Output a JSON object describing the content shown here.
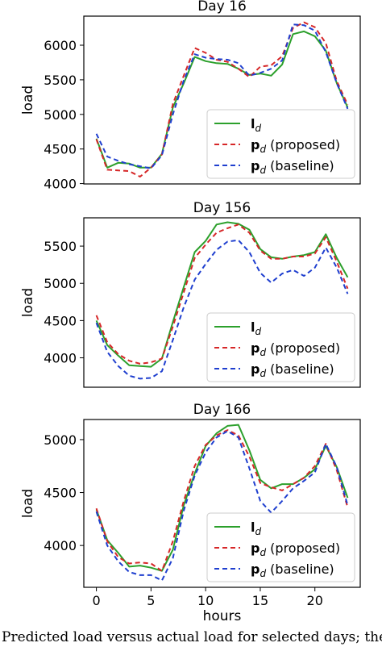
{
  "caption": "Predicted load versus actual load for selected days; the proposed method tracks closely",
  "legend": {
    "entries": [
      {
        "symbol": "l",
        "sub": "d",
        "suffix": "",
        "color": "#2ca02c",
        "dash": false
      },
      {
        "symbol": "p",
        "sub": "d",
        "suffix": " (proposed)",
        "color": "#d62728",
        "dash": true
      },
      {
        "symbol": "p",
        "sub": "d",
        "suffix": " (baseline)",
        "color": "#1f3fcf",
        "dash": true
      }
    ]
  },
  "chart_data": [
    {
      "type": "line",
      "title": "Day 16",
      "xlabel": "",
      "ylabel": "load",
      "xlim": [
        -1.15,
        24.15
      ],
      "ylim": [
        3995,
        6420
      ],
      "yticks": [
        4000,
        4500,
        5000,
        5500,
        6000
      ],
      "xticks": [],
      "grid": false,
      "legend_position": "lower-right",
      "x": [
        0,
        1,
        2,
        3,
        4,
        5,
        6,
        7,
        8,
        9,
        10,
        11,
        12,
        13,
        14,
        15,
        16,
        17,
        18,
        19,
        20,
        21,
        22,
        23
      ],
      "series": [
        {
          "name": "l_d",
          "color": "#2ca02c",
          "dash": false,
          "values": [
            4650,
            4230,
            4300,
            4290,
            4230,
            4230,
            4430,
            5100,
            5450,
            5830,
            5770,
            5740,
            5730,
            5660,
            5570,
            5590,
            5560,
            5720,
            6160,
            6200,
            6130,
            5920,
            5450,
            5100
          ]
        },
        {
          "name": "p_d (proposed)",
          "color": "#d62728",
          "dash": true,
          "values": [
            4640,
            4200,
            4190,
            4180,
            4100,
            4230,
            4420,
            5150,
            5560,
            5960,
            5890,
            5790,
            5760,
            5660,
            5540,
            5690,
            5710,
            5840,
            6250,
            6330,
            6260,
            6030,
            5480,
            5140
          ]
        },
        {
          "name": "p_d (baseline)",
          "color": "#1f3fcf",
          "dash": true,
          "values": [
            4720,
            4390,
            4330,
            4280,
            4250,
            4220,
            4410,
            5000,
            5490,
            5870,
            5820,
            5800,
            5790,
            5740,
            5560,
            5600,
            5660,
            5780,
            6300,
            6290,
            6210,
            5900,
            5450,
            5080
          ]
        }
      ]
    },
    {
      "type": "line",
      "title": "Day 156",
      "xlabel": "",
      "ylabel": "load",
      "xlim": [
        -1.15,
        24.15
      ],
      "ylim": [
        3605,
        5880
      ],
      "yticks": [
        4000,
        4500,
        5000,
        5500
      ],
      "xticks": [],
      "grid": false,
      "legend_position": "lower-right",
      "x": [
        0,
        1,
        2,
        3,
        4,
        5,
        6,
        7,
        8,
        9,
        10,
        11,
        12,
        13,
        14,
        15,
        16,
        17,
        18,
        19,
        20,
        21,
        22,
        23
      ],
      "series": [
        {
          "name": "l_d",
          "color": "#2ca02c",
          "dash": false,
          "values": [
            4500,
            4170,
            4030,
            3900,
            3890,
            3880,
            3990,
            4480,
            4950,
            5420,
            5570,
            5790,
            5820,
            5800,
            5720,
            5460,
            5350,
            5330,
            5360,
            5380,
            5420,
            5660,
            5340,
            5080
          ]
        },
        {
          "name": "p_d (proposed)",
          "color": "#d62728",
          "dash": true,
          "values": [
            4570,
            4210,
            4050,
            3960,
            3920,
            3940,
            3990,
            4420,
            4880,
            5340,
            5520,
            5680,
            5740,
            5790,
            5680,
            5440,
            5330,
            5330,
            5360,
            5360,
            5400,
            5620,
            5290,
            4930
          ]
        },
        {
          "name": "p_d (baseline)",
          "color": "#1f3fcf",
          "dash": true,
          "values": [
            4470,
            4080,
            3890,
            3760,
            3720,
            3730,
            3820,
            4240,
            4680,
            5050,
            5260,
            5450,
            5560,
            5580,
            5420,
            5140,
            5010,
            5130,
            5180,
            5100,
            5210,
            5480,
            5210,
            4860
          ]
        }
      ]
    },
    {
      "type": "line",
      "title": "Day 166",
      "xlabel": "hours",
      "ylabel": "load",
      "xlim": [
        -1.15,
        24.15
      ],
      "ylim": [
        3605,
        5190
      ],
      "yticks": [
        4000,
        4500,
        5000
      ],
      "xticks": [
        0,
        5,
        10,
        15,
        20
      ],
      "grid": false,
      "legend_position": "lower-right",
      "x": [
        0,
        1,
        2,
        3,
        4,
        5,
        6,
        7,
        8,
        9,
        10,
        11,
        12,
        13,
        14,
        15,
        16,
        17,
        18,
        19,
        20,
        21,
        22,
        23
      ],
      "series": [
        {
          "name": "l_d",
          "color": "#2ca02c",
          "dash": false,
          "values": [
            4340,
            4050,
            3930,
            3800,
            3810,
            3790,
            3760,
            3960,
            4380,
            4680,
            4940,
            5060,
            5130,
            5140,
            4900,
            4620,
            4540,
            4580,
            4580,
            4640,
            4720,
            4940,
            4740,
            4450
          ]
        },
        {
          "name": "p_d (proposed)",
          "color": "#d62728",
          "dash": true,
          "values": [
            4350,
            4040,
            3890,
            3830,
            3840,
            3830,
            3760,
            4040,
            4420,
            4750,
            4950,
            5040,
            5090,
            5040,
            4840,
            4590,
            4550,
            4520,
            4580,
            4640,
            4750,
            4960,
            4710,
            4360
          ]
        },
        {
          "name": "p_d (baseline)",
          "color": "#1f3fcf",
          "dash": true,
          "values": [
            4320,
            4000,
            3850,
            3750,
            3720,
            3720,
            3670,
            3880,
            4330,
            4660,
            4880,
            5020,
            5080,
            5020,
            4730,
            4420,
            4310,
            4420,
            4540,
            4610,
            4690,
            4960,
            4740,
            4380
          ]
        }
      ]
    }
  ]
}
